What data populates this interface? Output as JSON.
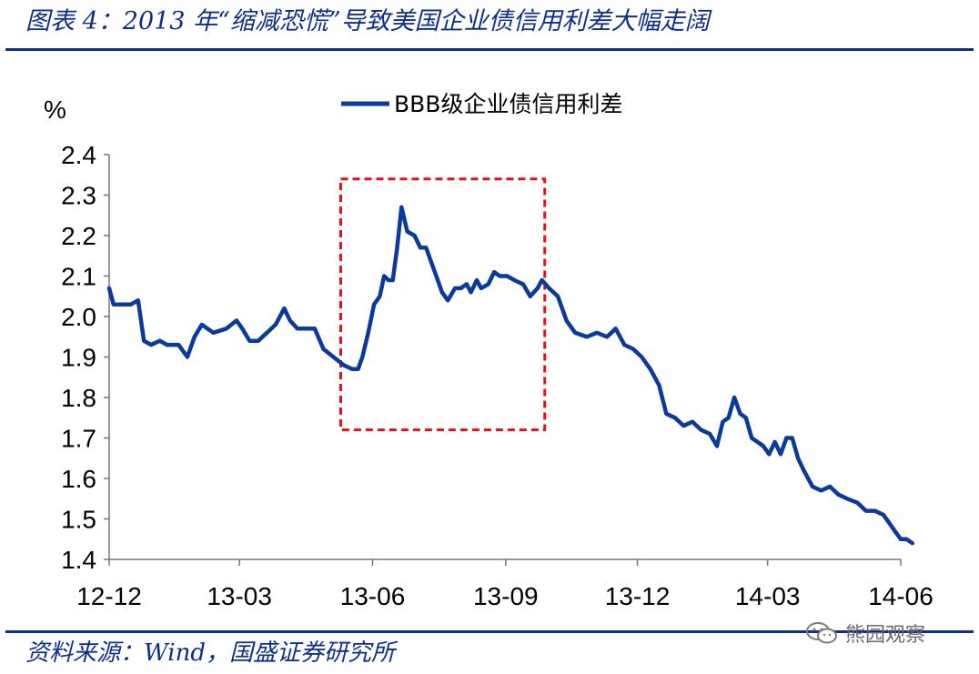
{
  "header": {
    "title": "图表 4：2013 年“缩减恐慌”导致美国企业债信用利差大幅走阔"
  },
  "footer": {
    "source": "资料来源：Wind，国盛证券研究所",
    "watermark": "熊园观察"
  },
  "colors": {
    "title": "#0b2f8a",
    "series": "#0a3a9c",
    "highlight_box": "#e3101a"
  },
  "chart_data": {
    "type": "line",
    "ylabel": "%",
    "ylim": [
      1.4,
      2.4
    ],
    "yticks": [
      "1.4",
      "1.5",
      "1.6",
      "1.7",
      "1.8",
      "1.9",
      "2.0",
      "2.1",
      "2.2",
      "2.3",
      "2.4"
    ],
    "xticks": [
      "12-12",
      "13-03",
      "13-06",
      "13-09",
      "13-12",
      "14-03",
      "14-06"
    ],
    "xlim": [
      "2012-12-01",
      "2014-06-01"
    ],
    "legend_position": "top-center",
    "grid": false,
    "highlight": {
      "x_from": "2013-05-10",
      "x_to": "2013-09-28",
      "y_from": 1.72,
      "y_to": 2.34
    },
    "series": [
      {
        "name": "BBB级企业债信用利差",
        "points": [
          [
            "2012-12-01",
            2.07
          ],
          [
            "2012-12-04",
            2.03
          ],
          [
            "2012-12-10",
            2.03
          ],
          [
            "2012-12-16",
            2.03
          ],
          [
            "2012-12-21",
            2.04
          ],
          [
            "2012-12-25",
            1.94
          ],
          [
            "2012-12-30",
            1.93
          ],
          [
            "2013-01-05",
            1.94
          ],
          [
            "2013-01-10",
            1.93
          ],
          [
            "2013-01-18",
            1.93
          ],
          [
            "2013-01-24",
            1.9
          ],
          [
            "2013-01-29",
            1.95
          ],
          [
            "2013-02-03",
            1.98
          ],
          [
            "2013-02-11",
            1.96
          ],
          [
            "2013-02-20",
            1.97
          ],
          [
            "2013-02-27",
            1.99
          ],
          [
            "2013-03-03",
            1.97
          ],
          [
            "2013-03-08",
            1.94
          ],
          [
            "2013-03-14",
            1.94
          ],
          [
            "2013-03-20",
            1.96
          ],
          [
            "2013-03-26",
            1.98
          ],
          [
            "2013-04-01",
            2.02
          ],
          [
            "2013-04-05",
            1.99
          ],
          [
            "2013-04-10",
            1.97
          ],
          [
            "2013-04-16",
            1.97
          ],
          [
            "2013-04-22",
            1.97
          ],
          [
            "2013-04-28",
            1.92
          ],
          [
            "2013-05-05",
            1.9
          ],
          [
            "2013-05-12",
            1.88
          ],
          [
            "2013-05-18",
            1.87
          ],
          [
            "2013-05-22",
            1.87
          ],
          [
            "2013-05-25",
            1.9
          ],
          [
            "2013-05-29",
            1.96
          ],
          [
            "2013-06-02",
            2.03
          ],
          [
            "2013-06-06",
            2.05
          ],
          [
            "2013-06-09",
            2.1
          ],
          [
            "2013-06-12",
            2.09
          ],
          [
            "2013-06-15",
            2.09
          ],
          [
            "2013-06-18",
            2.17
          ],
          [
            "2013-06-21",
            2.27
          ],
          [
            "2013-06-25",
            2.21
          ],
          [
            "2013-06-30",
            2.2
          ],
          [
            "2013-07-04",
            2.17
          ],
          [
            "2013-07-08",
            2.17
          ],
          [
            "2013-07-11",
            2.14
          ],
          [
            "2013-07-15",
            2.1
          ],
          [
            "2013-07-19",
            2.06
          ],
          [
            "2013-07-23",
            2.04
          ],
          [
            "2013-07-28",
            2.07
          ],
          [
            "2013-08-01",
            2.07
          ],
          [
            "2013-08-05",
            2.08
          ],
          [
            "2013-08-08",
            2.06
          ],
          [
            "2013-08-12",
            2.09
          ],
          [
            "2013-08-15",
            2.07
          ],
          [
            "2013-08-20",
            2.08
          ],
          [
            "2013-08-24",
            2.11
          ],
          [
            "2013-08-28",
            2.1
          ],
          [
            "2013-09-02",
            2.1
          ],
          [
            "2013-09-07",
            2.09
          ],
          [
            "2013-09-13",
            2.08
          ],
          [
            "2013-09-18",
            2.05
          ],
          [
            "2013-09-23",
            2.07
          ],
          [
            "2013-09-26",
            2.09
          ],
          [
            "2013-10-01",
            2.07
          ],
          [
            "2013-10-07",
            2.05
          ],
          [
            "2013-10-13",
            1.99
          ],
          [
            "2013-10-19",
            1.96
          ],
          [
            "2013-10-27",
            1.95
          ],
          [
            "2013-11-03",
            1.96
          ],
          [
            "2013-11-10",
            1.95
          ],
          [
            "2013-11-16",
            1.97
          ],
          [
            "2013-11-22",
            1.93
          ],
          [
            "2013-11-28",
            1.92
          ],
          [
            "2013-12-04",
            1.9
          ],
          [
            "2013-12-10",
            1.87
          ],
          [
            "2013-12-16",
            1.83
          ],
          [
            "2013-12-21",
            1.76
          ],
          [
            "2013-12-27",
            1.75
          ],
          [
            "2014-01-02",
            1.73
          ],
          [
            "2014-01-08",
            1.74
          ],
          [
            "2014-01-14",
            1.72
          ],
          [
            "2014-01-20",
            1.71
          ],
          [
            "2014-01-25",
            1.68
          ],
          [
            "2014-01-29",
            1.74
          ],
          [
            "2014-02-02",
            1.75
          ],
          [
            "2014-02-06",
            1.8
          ],
          [
            "2014-02-10",
            1.76
          ],
          [
            "2014-02-14",
            1.75
          ],
          [
            "2014-02-18",
            1.7
          ],
          [
            "2014-02-22",
            1.69
          ],
          [
            "2014-02-26",
            1.68
          ],
          [
            "2014-03-02",
            1.66
          ],
          [
            "2014-03-06",
            1.69
          ],
          [
            "2014-03-10",
            1.66
          ],
          [
            "2014-03-14",
            1.7
          ],
          [
            "2014-03-18",
            1.7
          ],
          [
            "2014-03-22",
            1.65
          ],
          [
            "2014-03-26",
            1.62
          ],
          [
            "2014-04-01",
            1.58
          ],
          [
            "2014-04-07",
            1.57
          ],
          [
            "2014-04-13",
            1.58
          ],
          [
            "2014-04-19",
            1.56
          ],
          [
            "2014-04-25",
            1.55
          ],
          [
            "2014-05-02",
            1.54
          ],
          [
            "2014-05-08",
            1.52
          ],
          [
            "2014-05-14",
            1.52
          ],
          [
            "2014-05-20",
            1.51
          ],
          [
            "2014-05-24",
            1.49
          ],
          [
            "2014-05-28",
            1.47
          ],
          [
            "2014-06-01",
            1.45
          ],
          [
            "2014-06-05",
            1.45
          ],
          [
            "2014-06-09",
            1.44
          ]
        ]
      }
    ]
  }
}
